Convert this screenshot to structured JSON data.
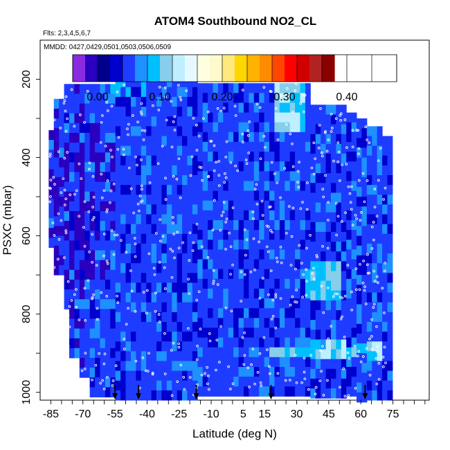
{
  "chart_data": {
    "type": "heatmap",
    "title": "ATOM4 Southbound NO2_CL",
    "subtitle_flights": "Flts: 2,3,4,5,6,7",
    "subtitle_dates": "MMDD: 0427,0429,0501,0503,0506,0509",
    "xlabel": "Latitude (deg N)",
    "ylabel": "PSXC (mbar)",
    "xlim": [
      -90,
      92
    ],
    "ylim": [
      1020,
      100
    ],
    "x_ticks": [
      -85,
      -70,
      -55,
      -40,
      -25,
      -10,
      5,
      15,
      30,
      45,
      60,
      75
    ],
    "x_tick_labels": [
      "-85",
      "-70",
      "-55",
      "-40",
      "-25",
      "-10",
      "5",
      "15",
      "30",
      "45",
      "60",
      "75"
    ],
    "y_ticks": [
      200,
      400,
      600,
      800,
      1000
    ],
    "y_tick_labels": [
      "200",
      "400",
      "600",
      "800",
      "1000"
    ],
    "colorbar": {
      "breaks": [
        -0.04,
        -0.02,
        0.0,
        0.02,
        0.04,
        0.06,
        0.08,
        0.1,
        0.12,
        0.14,
        0.16,
        0.18,
        0.2,
        0.22,
        0.24,
        0.26,
        0.28,
        0.3,
        0.32,
        0.34,
        0.36,
        0.38,
        0.4,
        0.42,
        0.44,
        0.46,
        0.48
      ],
      "colors": [
        "#8a2be2",
        "#2a00c0",
        "#00008b",
        "#0000cd",
        "#1e3cff",
        "#1e90ff",
        "#00bfff",
        "#87ceeb",
        "#bfefff",
        "#e8f8ff",
        "#ffffe0",
        "#fffacd",
        "#ffe87c",
        "#ffd700",
        "#ffb300",
        "#ff8c00",
        "#ff4500",
        "#ff0000",
        "#d00000",
        "#b22222",
        "#8b0000"
      ],
      "tick_values": [
        0.0,
        0.1,
        0.2,
        0.3,
        0.4
      ],
      "tick_labels": [
        "0.00",
        "0.10",
        "0.20",
        "0.30",
        "0.40"
      ]
    },
    "field_value_range": [
      0.0,
      0.18
    ],
    "grid": false,
    "legend": "top colorbar",
    "flight_marker_latitudes": [
      -55,
      -44,
      -17,
      18,
      62
    ]
  }
}
